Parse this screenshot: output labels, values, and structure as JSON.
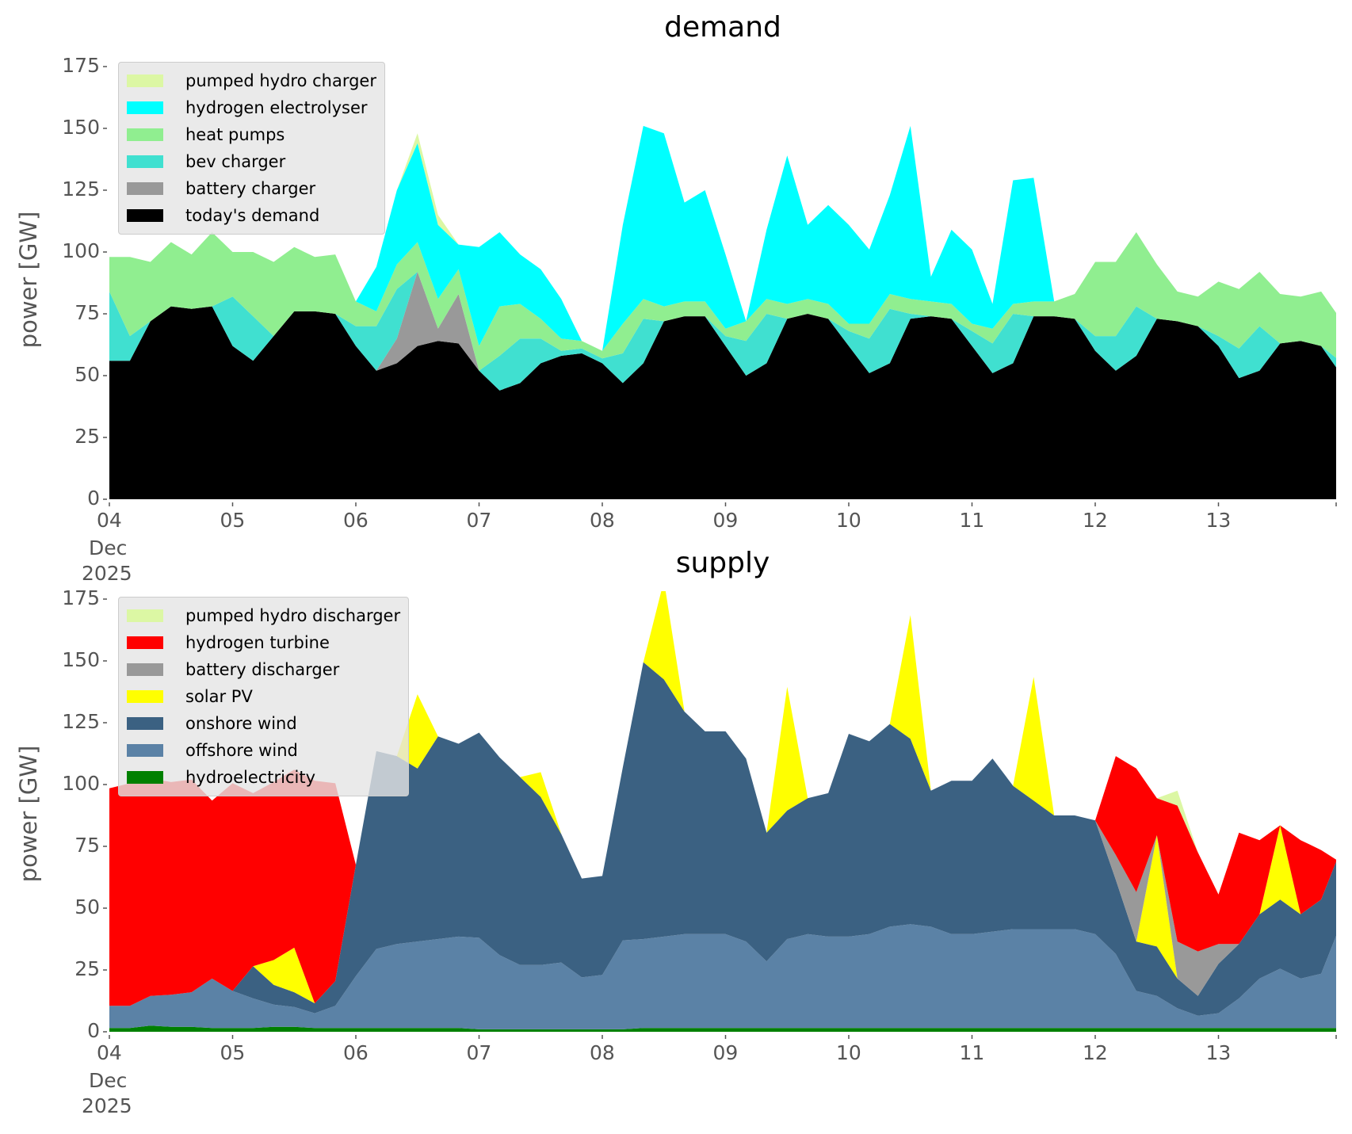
{
  "chart_data": [
    {
      "type": "area",
      "stacked": true,
      "title": "demand",
      "ylabel": "power [GW]",
      "xlabel": "",
      "ylim": [
        0,
        175
      ],
      "x_unit": "days since 04 Dec 2025 00:00",
      "x_step_hours": 4,
      "xlim_days": [
        0,
        9.96
      ],
      "yticks": [
        "0",
        "25",
        "50",
        "75",
        "100",
        "125",
        "150",
        "175"
      ],
      "xticks": [
        "04",
        "05",
        "06",
        "07",
        "08",
        "09",
        "10",
        "11",
        "12",
        "13"
      ],
      "xtick_sub": [
        "Dec",
        "2025"
      ],
      "legend_position": "top-left",
      "series": [
        {
          "name": "today's demand",
          "color": "#000000",
          "values": [
            56,
            56,
            72,
            78,
            77,
            78,
            62,
            56,
            66,
            76,
            76,
            75,
            62,
            52,
            55,
            62,
            64,
            63,
            52,
            44,
            47,
            55,
            58,
            59,
            55,
            47,
            55,
            72,
            74,
            74,
            62,
            50,
            55,
            73,
            75,
            73,
            62,
            51,
            55,
            73,
            74,
            73,
            62,
            51,
            55,
            74,
            74,
            73,
            60,
            52,
            58,
            73,
            72,
            70,
            62,
            49,
            52,
            63,
            64,
            62,
            53
          ]
        },
        {
          "name": "battery charger",
          "color": "#999999",
          "values": [
            0,
            0,
            0,
            0,
            0,
            0,
            0,
            0,
            0,
            0,
            0,
            0,
            0,
            0,
            10,
            30,
            5,
            20,
            0,
            0,
            0,
            0,
            0,
            0,
            0,
            0,
            0,
            0,
            0,
            0,
            0,
            0,
            0,
            0,
            0,
            0,
            0,
            0,
            0,
            0,
            0,
            0,
            0,
            0,
            0,
            0,
            0,
            0,
            0,
            0,
            0,
            0,
            0,
            0,
            0,
            0,
            0,
            0,
            0,
            0,
            0
          ]
        },
        {
          "name": "bev charger",
          "color": "#40e0d0",
          "values": [
            28,
            10,
            0,
            0,
            0,
            0,
            20,
            18,
            0,
            0,
            0,
            0,
            8,
            18,
            20,
            0,
            0,
            0,
            0,
            14,
            18,
            10,
            2,
            2,
            2,
            12,
            18,
            0,
            0,
            0,
            4,
            14,
            20,
            0,
            0,
            0,
            6,
            14,
            22,
            2,
            0,
            0,
            6,
            12,
            20,
            0,
            0,
            0,
            6,
            14,
            20,
            0,
            0,
            0,
            4,
            12,
            18,
            0,
            0,
            0,
            4
          ]
        },
        {
          "name": "heat pumps",
          "color": "#90ee90",
          "values": [
            14,
            32,
            24,
            26,
            22,
            30,
            18,
            26,
            30,
            26,
            22,
            24,
            10,
            6,
            10,
            12,
            12,
            10,
            10,
            20,
            14,
            8,
            5,
            3,
            3,
            12,
            8,
            6,
            6,
            6,
            3,
            8,
            6,
            6,
            6,
            6,
            3,
            6,
            6,
            6,
            6,
            6,
            3,
            6,
            4,
            6,
            6,
            10,
            30,
            30,
            30,
            22,
            12,
            12,
            22,
            24,
            22,
            20,
            18,
            22,
            18
          ]
        },
        {
          "name": "hydrogen electrolyser",
          "color": "#00ffff",
          "values": [
            0,
            0,
            0,
            0,
            0,
            0,
            0,
            0,
            0,
            0,
            0,
            0,
            0,
            18,
            30,
            40,
            30,
            10,
            40,
            30,
            20,
            20,
            16,
            0,
            0,
            40,
            70,
            70,
            40,
            45,
            30,
            0,
            28,
            60,
            30,
            40,
            40,
            30,
            40,
            70,
            10,
            30,
            30,
            10,
            50,
            50,
            0,
            0,
            0,
            0,
            0,
            0,
            0,
            0,
            0,
            0,
            0,
            0,
            0,
            0,
            0
          ]
        },
        {
          "name": "pumped hydro charger",
          "color": "#dcf7a4",
          "values": [
            0,
            0,
            0,
            0,
            0,
            0,
            0,
            0,
            0,
            0,
            0,
            0,
            0,
            0,
            0,
            4,
            4,
            0,
            0,
            0,
            0,
            0,
            0,
            0,
            0,
            0,
            0,
            0,
            0,
            0,
            0,
            0,
            0,
            0,
            0,
            0,
            0,
            0,
            0,
            0,
            0,
            0,
            0,
            0,
            0,
            0,
            0,
            0,
            0,
            0,
            0,
            0,
            0,
            0,
            0,
            0,
            0,
            0,
            0,
            0,
            0
          ]
        }
      ]
    },
    {
      "type": "area",
      "stacked": true,
      "title": "supply",
      "ylabel": "power [GW]",
      "xlabel": "",
      "ylim": [
        0,
        175
      ],
      "x_unit": "days since 04 Dec 2025 00:00",
      "x_step_hours": 4,
      "xlim_days": [
        0,
        9.96
      ],
      "yticks": [
        "0",
        "25",
        "50",
        "75",
        "100",
        "125",
        "150",
        "175"
      ],
      "xticks": [
        "04",
        "05",
        "06",
        "07",
        "08",
        "09",
        "10",
        "11",
        "12",
        "13"
      ],
      "xtick_sub": [
        "Dec",
        "2025"
      ],
      "legend_position": "top-left",
      "series": [
        {
          "name": "hydroelectricity",
          "color": "#008000",
          "values": [
            1.5,
            1.5,
            2.5,
            2,
            2,
            1.5,
            1.5,
            1.5,
            2,
            2,
            1.5,
            1.5,
            1.5,
            1.5,
            1.5,
            1.5,
            1.5,
            1.5,
            1,
            1,
            1,
            1,
            1,
            1,
            1,
            1,
            1.5,
            1.5,
            1.5,
            1.5,
            1.5,
            1.5,
            1.5,
            1.5,
            1.5,
            1.5,
            1.5,
            1.5,
            1.5,
            1.5,
            1.5,
            1.5,
            1.5,
            1.5,
            1.5,
            1.5,
            1.5,
            1.5,
            1.5,
            1.5,
            1.5,
            1.5,
            1.5,
            1.5,
            1.5,
            1.5,
            1.5,
            1.5,
            1.5,
            1.5,
            1.5
          ]
        },
        {
          "name": "offshore wind",
          "color": "#5b82a6",
          "values": [
            9,
            9,
            12,
            13,
            14,
            20,
            15,
            12,
            9,
            8,
            6,
            9,
            21,
            32,
            34,
            35,
            36,
            37,
            37,
            30,
            26,
            26,
            27,
            21,
            22,
            36,
            36,
            37,
            38,
            38,
            38,
            35,
            27,
            36,
            38,
            37,
            37,
            38,
            41,
            42,
            41,
            38,
            38,
            39,
            40,
            40,
            40,
            40,
            38,
            30,
            15,
            13,
            8,
            5,
            6,
            12,
            20,
            24,
            20,
            22,
            38
          ]
        },
        {
          "name": "onshore wind",
          "color": "#3b6182",
          "values": [
            0,
            0,
            0,
            0,
            0,
            0,
            0,
            13,
            8,
            6,
            4,
            10,
            45,
            80,
            76,
            70,
            82,
            78,
            83,
            80,
            76,
            68,
            52,
            40,
            40,
            70,
            112,
            104,
            90,
            82,
            82,
            74,
            52,
            52,
            55,
            58,
            82,
            78,
            82,
            75,
            55,
            62,
            62,
            70,
            58,
            52,
            46,
            46,
            46,
            30,
            20,
            20,
            12,
            8,
            20,
            22,
            26,
            28,
            26,
            30,
            30
          ]
        },
        {
          "name": "solar PV",
          "color": "#ffff00",
          "values": [
            0,
            0,
            0,
            0,
            0,
            0,
            0,
            0,
            10,
            18,
            0,
            0,
            0,
            0,
            0,
            30,
            0,
            0,
            0,
            0,
            0,
            10,
            0,
            0,
            0,
            0,
            0,
            40,
            0,
            0,
            0,
            0,
            0,
            50,
            0,
            0,
            0,
            0,
            0,
            50,
            0,
            0,
            0,
            0,
            0,
            50,
            0,
            0,
            0,
            0,
            0,
            45,
            0,
            0,
            0,
            0,
            0,
            30,
            0,
            0,
            0
          ]
        },
        {
          "name": "battery discharger",
          "color": "#999999",
          "values": [
            0,
            0,
            0,
            0,
            0,
            0,
            0,
            0,
            0,
            0,
            0,
            0,
            0,
            0,
            0,
            0,
            0,
            0,
            0,
            0,
            0,
            0,
            0,
            0,
            0,
            0,
            0,
            0,
            0,
            0,
            0,
            0,
            0,
            0,
            0,
            0,
            0,
            0,
            0,
            0,
            0,
            0,
            0,
            0,
            0,
            0,
            0,
            0,
            0,
            10,
            20,
            0,
            15,
            18,
            8,
            0,
            0,
            0,
            0,
            0,
            0
          ]
        },
        {
          "name": "hydrogen turbine",
          "color": "#ff0000",
          "values": [
            88,
            90,
            88,
            86,
            86,
            72,
            84,
            70,
            72,
            72,
            90,
            80,
            0,
            0,
            0,
            0,
            0,
            0,
            0,
            0,
            0,
            0,
            0,
            0,
            0,
            0,
            0,
            0,
            0,
            0,
            0,
            0,
            0,
            0,
            0,
            0,
            0,
            0,
            0,
            0,
            0,
            0,
            0,
            0,
            0,
            0,
            0,
            0,
            0,
            40,
            50,
            15,
            55,
            40,
            20,
            45,
            30,
            0,
            30,
            20,
            0
          ]
        },
        {
          "name": "pumped hydro discharger",
          "color": "#dcf7a4",
          "values": [
            0,
            0,
            0,
            0,
            0,
            0,
            0,
            0,
            0,
            0,
            0,
            0,
            0,
            0,
            0,
            0,
            0,
            0,
            0,
            0,
            0,
            0,
            0,
            0,
            0,
            0,
            0,
            0,
            0,
            0,
            0,
            0,
            0,
            0,
            0,
            0,
            0,
            0,
            0,
            0,
            0,
            0,
            0,
            0,
            0,
            0,
            0,
            0,
            0,
            0,
            0,
            0,
            6,
            0,
            0,
            0,
            0,
            0,
            0,
            0,
            0
          ]
        }
      ]
    }
  ],
  "legends": {
    "demand": [
      "pumped hydro charger",
      "hydrogen electrolyser",
      "heat pumps",
      "bev charger",
      "battery charger",
      "today's demand"
    ],
    "supply": [
      "pumped hydro discharger",
      "hydrogen turbine",
      "battery discharger",
      "solar PV",
      "onshore wind",
      "offshore wind",
      "hydroelectricity"
    ]
  }
}
